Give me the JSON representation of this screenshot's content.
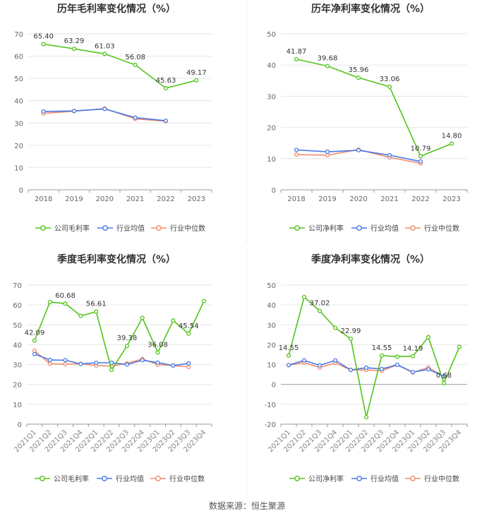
{
  "source_label": "数据来源：恒生聚源",
  "colors": {
    "company": "#52c41a",
    "industry_avg": "#4a78e8",
    "industry_median": "#f08c6c"
  },
  "chart_data": [
    {
      "type": "line",
      "title": "历年毛利率变化情况（%）",
      "categories": [
        "2018",
        "2019",
        "2020",
        "2021",
        "2022",
        "2023"
      ],
      "ylim": [
        0,
        70
      ],
      "yticks": [
        0,
        10,
        20,
        30,
        40,
        50,
        60,
        70
      ],
      "grid": true,
      "legend": "bottom",
      "series": [
        {
          "name": "公司毛利率",
          "values": [
            65.4,
            63.29,
            61.03,
            56.08,
            45.63,
            49.17
          ],
          "labels": [
            "65.40",
            "63.29",
            "61.03",
            "56.08",
            "45.63",
            "49.17"
          ]
        },
        {
          "name": "行业均值",
          "values": [
            35.2,
            35.4,
            36.3,
            32.4,
            31.0,
            null
          ]
        },
        {
          "name": "行业中位数",
          "values": [
            34.3,
            35.3,
            36.5,
            31.9,
            30.8,
            null
          ]
        }
      ]
    },
    {
      "type": "line",
      "title": "历年净利率变化情况（%）",
      "categories": [
        "2018",
        "2019",
        "2020",
        "2021",
        "2022",
        "2023"
      ],
      "ylim": [
        0,
        50
      ],
      "yticks": [
        0,
        10,
        20,
        30,
        40,
        50
      ],
      "grid": true,
      "legend": "bottom",
      "series": [
        {
          "name": "公司净利率",
          "values": [
            41.87,
            39.68,
            35.96,
            33.06,
            10.79,
            14.8
          ],
          "labels": [
            "41.87",
            "39.68",
            "35.96",
            "33.06",
            "10.79",
            "14.80"
          ]
        },
        {
          "name": "行业均值",
          "values": [
            12.8,
            12.2,
            12.7,
            11.1,
            9.1,
            null
          ]
        },
        {
          "name": "行业中位数",
          "values": [
            11.3,
            11.1,
            12.9,
            10.4,
            8.5,
            null
          ]
        }
      ]
    },
    {
      "type": "line",
      "title": "季度毛利率变化情况（%）",
      "categories": [
        "2021Q1",
        "2021Q2",
        "2021Q3",
        "2021Q4",
        "2022Q1",
        "2022Q2",
        "2022Q3",
        "2022Q4",
        "2023Q1",
        "2023Q2",
        "2023Q3",
        "2023Q4"
      ],
      "ylim": [
        0,
        70
      ],
      "yticks": [
        0,
        10,
        20,
        30,
        40,
        50,
        60,
        70
      ],
      "grid": true,
      "legend": "bottom",
      "series": [
        {
          "name": "公司毛利率",
          "values": [
            42.09,
            61.5,
            60.68,
            54.5,
            56.61,
            27.3,
            39.38,
            53.5,
            36.08,
            52.2,
            45.54,
            62.0
          ],
          "labels": [
            "42.09",
            "",
            "60.68",
            "",
            "56.61",
            "",
            "39.38",
            "",
            "36.08",
            "",
            "45.54",
            ""
          ]
        },
        {
          "name": "行业均值",
          "values": [
            35.3,
            32.3,
            32.2,
            30.3,
            30.9,
            30.9,
            30.0,
            32.2,
            31.0,
            29.5,
            30.6,
            null
          ]
        },
        {
          "name": "行业中位数",
          "values": [
            37.0,
            30.4,
            30.2,
            30.4,
            29.5,
            29.2,
            30.6,
            32.8,
            30.0,
            29.5,
            28.8,
            null
          ]
        }
      ]
    },
    {
      "type": "line",
      "title": "季度净利率变化情况（%）",
      "categories": [
        "2021Q1",
        "2021Q2",
        "2021Q3",
        "2021Q4",
        "2022Q1",
        "2022Q2",
        "2022Q3",
        "2022Q4",
        "2023Q1",
        "2023Q2",
        "2023Q3",
        "2023Q4"
      ],
      "ylim": [
        -20,
        50
      ],
      "yticks": [
        -20,
        -10,
        0,
        10,
        20,
        30,
        40,
        50
      ],
      "grid": true,
      "legend": "bottom",
      "series": [
        {
          "name": "公司净利率",
          "values": [
            14.55,
            44.0,
            37.02,
            28.5,
            22.99,
            -16.5,
            14.55,
            14.0,
            14.19,
            23.8,
            0.68,
            18.9
          ],
          "labels": [
            "14.55",
            "",
            "37.02",
            "",
            "22.99",
            "",
            "14.55",
            "",
            "14.19",
            "",
            "0.68",
            ""
          ]
        },
        {
          "name": "行业均值",
          "values": [
            9.7,
            12.1,
            9.6,
            12.1,
            7.3,
            8.4,
            7.8,
            9.9,
            6.2,
            7.6,
            4.1,
            null
          ]
        },
        {
          "name": "行业中位数",
          "values": [
            9.7,
            11.0,
            8.5,
            10.8,
            7.3,
            7.3,
            6.9,
            9.8,
            6.0,
            8.5,
            3.9,
            null
          ]
        }
      ]
    }
  ]
}
